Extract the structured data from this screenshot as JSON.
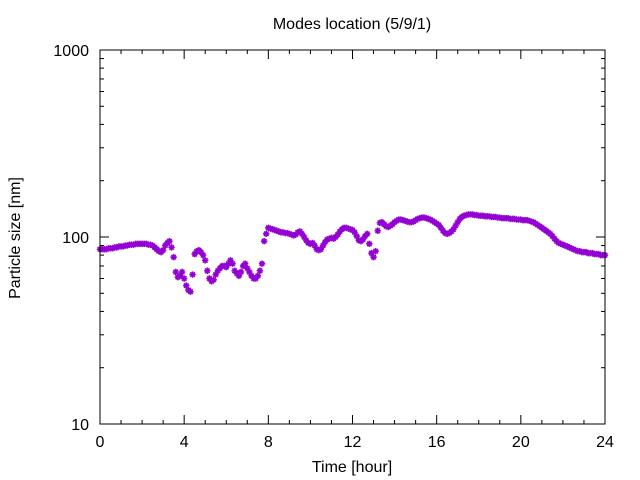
{
  "chart_data": {
    "type": "scatter",
    "title": "Modes location (5/9/1)",
    "xlabel": "Time [hour]",
    "ylabel": "Particle size [nm]",
    "xlim": [
      0,
      24
    ],
    "ylim": [
      10,
      1000
    ],
    "yscale": "log",
    "xticks": [
      0,
      4,
      8,
      12,
      16,
      20,
      24
    ],
    "xtick_labels": [
      "0",
      "4",
      "8",
      "12",
      "16",
      "20",
      "24"
    ],
    "yticks": [
      10,
      100,
      1000
    ],
    "ytick_labels": [
      "10",
      "100",
      "1000"
    ],
    "grid": false,
    "legend": "none",
    "marker": "star",
    "marker_color": "#9400d3",
    "series": [
      {
        "x": [
          0.0,
          0.1,
          0.2,
          0.3,
          0.4,
          0.5,
          0.6,
          0.7,
          0.8,
          0.9,
          1.0,
          1.1,
          1.2,
          1.3,
          1.4,
          1.5,
          1.6,
          1.7,
          1.8,
          1.9,
          2.0,
          2.1,
          2.2,
          2.3,
          2.4,
          2.5,
          2.6,
          2.7,
          2.8,
          2.9,
          3.0,
          3.1,
          3.2,
          3.3,
          3.4,
          3.5,
          3.6,
          3.7,
          3.8,
          3.9,
          4.0,
          4.1,
          4.2,
          4.3,
          4.4,
          4.5,
          4.6,
          4.7,
          4.8,
          4.9,
          5.0,
          5.1,
          5.2,
          5.3,
          5.4,
          5.5,
          5.6,
          5.7,
          5.8,
          5.9,
          6.0,
          6.1,
          6.2,
          6.3,
          6.4,
          6.5,
          6.6,
          6.7,
          6.8,
          6.9,
          7.0,
          7.1,
          7.2,
          7.3,
          7.4,
          7.5,
          7.6,
          7.7,
          7.8,
          7.9,
          8.0,
          8.1,
          8.2,
          8.3,
          8.4,
          8.5,
          8.6,
          8.7,
          8.8,
          8.9,
          9.0,
          9.1,
          9.2,
          9.3,
          9.4,
          9.5,
          9.6,
          9.7,
          9.8,
          9.9,
          10.0,
          10.1,
          10.2,
          10.3,
          10.4,
          10.5,
          10.6,
          10.7,
          10.8,
          10.9,
          11.0,
          11.1,
          11.2,
          11.3,
          11.4,
          11.5,
          11.6,
          11.7,
          11.8,
          11.9,
          12.0,
          12.1,
          12.2,
          12.3,
          12.4,
          12.5,
          12.6,
          12.7,
          12.8,
          12.9,
          13.0,
          13.1,
          13.2,
          13.3,
          13.4,
          13.5,
          13.6,
          13.7,
          13.8,
          13.9,
          14.0,
          14.1,
          14.2,
          14.3,
          14.4,
          14.5,
          14.6,
          14.7,
          14.8,
          14.9,
          15.0,
          15.1,
          15.2,
          15.3,
          15.4,
          15.5,
          15.6,
          15.7,
          15.8,
          15.9,
          16.0,
          16.1,
          16.2,
          16.3,
          16.4,
          16.5,
          16.6,
          16.7,
          16.8,
          16.9,
          17.0,
          17.1,
          17.2,
          17.3,
          17.4,
          17.5,
          17.6,
          17.7,
          17.8,
          17.9,
          18.0,
          18.1,
          18.2,
          18.3,
          18.4,
          18.5,
          18.6,
          18.7,
          18.8,
          18.9,
          19.0,
          19.1,
          19.2,
          19.3,
          19.4,
          19.5,
          19.6,
          19.7,
          19.8,
          19.9,
          20.0,
          20.1,
          20.2,
          20.3,
          20.4,
          20.5,
          20.6,
          20.7,
          20.8,
          20.9,
          21.0,
          21.1,
          21.2,
          21.3,
          21.4,
          21.5,
          21.6,
          21.7,
          21.8,
          21.9,
          22.0,
          22.1,
          22.2,
          22.3,
          22.4,
          22.5,
          22.6,
          22.7,
          22.8,
          22.9,
          23.0,
          23.1,
          23.2,
          23.3,
          23.4,
          23.5,
          23.6,
          23.7,
          23.8,
          23.9,
          24.0
        ],
        "y": [
          86,
          86,
          86,
          86,
          87,
          87,
          87,
          88,
          88,
          89,
          89,
          89,
          90,
          90,
          91,
          91,
          91,
          92,
          92,
          92,
          92,
          92,
          92,
          91,
          91,
          90,
          88,
          86,
          84,
          83,
          85,
          90,
          93,
          95,
          88,
          78,
          65,
          61,
          62,
          65,
          60,
          55,
          52,
          51,
          63,
          81,
          84,
          85,
          83,
          80,
          75,
          66,
          60,
          58,
          59,
          63,
          66,
          68,
          70,
          70,
          69,
          72,
          75,
          72,
          66,
          64,
          62,
          65,
          70,
          72,
          68,
          65,
          62,
          60,
          60,
          62,
          66,
          72,
          95,
          104,
          112,
          111,
          110,
          109,
          108,
          107,
          106,
          106,
          105,
          105,
          104,
          103,
          102,
          103,
          106,
          107,
          104,
          100,
          96,
          93,
          92,
          93,
          90,
          86,
          85,
          86,
          90,
          94,
          97,
          98,
          99,
          98,
          100,
          103,
          107,
          110,
          112,
          112,
          111,
          110,
          109,
          106,
          101,
          96,
          95,
          97,
          101,
          104,
          92,
          82,
          78,
          84,
          108,
          119,
          120,
          117,
          114,
          113,
          115,
          117,
          120,
          122,
          124,
          124,
          123,
          122,
          121,
          120,
          120,
          121,
          123,
          125,
          126,
          127,
          127,
          126,
          125,
          124,
          122,
          120,
          118,
          116,
          112,
          108,
          105,
          104,
          105,
          107,
          110,
          115,
          120,
          125,
          128,
          130,
          131,
          132,
          132,
          132,
          131,
          131,
          130,
          130,
          130,
          129,
          129,
          129,
          128,
          128,
          128,
          127,
          127,
          126,
          126,
          126,
          126,
          125,
          125,
          125,
          124,
          124,
          124,
          123,
          123,
          123,
          122,
          121,
          120,
          118,
          116,
          114,
          112,
          110,
          108,
          106,
          104,
          101,
          98,
          95,
          93,
          92,
          91,
          90,
          89,
          88,
          87,
          86,
          85,
          84,
          84,
          83,
          83,
          83,
          82,
          82,
          82,
          81,
          81,
          81,
          80,
          80,
          80
        ]
      }
    ]
  }
}
